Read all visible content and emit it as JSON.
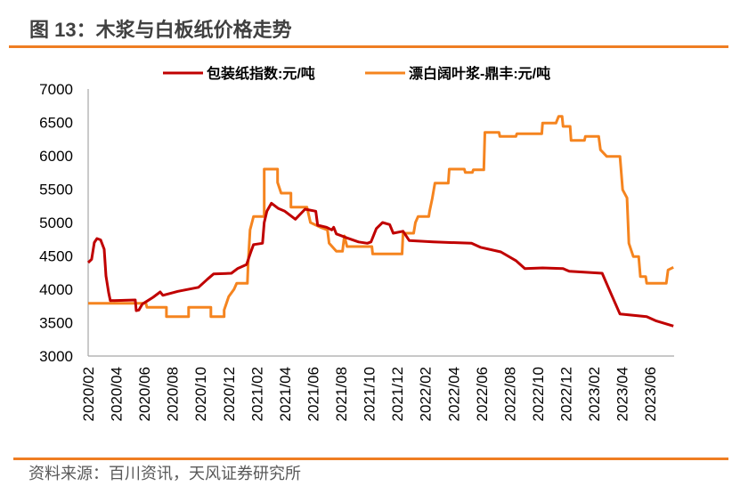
{
  "title": "图 13：木浆与白板纸价格走势",
  "source": "资料来源：百川资讯，天风证券研究所",
  "chart_data": {
    "type": "line",
    "title": "图 13：木浆与白板纸价格走势",
    "xlabel": "",
    "ylabel": "",
    "ylim": [
      3000,
      7000
    ],
    "yticks": [
      "3000",
      "3500",
      "4000",
      "4500",
      "5000",
      "5500",
      "6000",
      "6500",
      "7000"
    ],
    "x_unit": "months since 2020/02",
    "xlim": [
      0,
      41.7
    ],
    "xtick_labels": [
      "2020/02",
      "2020/04",
      "2020/06",
      "2020/08",
      "2020/10",
      "2020/12",
      "2021/02",
      "2021/04",
      "2021/06",
      "2021/08",
      "2021/10",
      "2021/12",
      "2022/02",
      "2022/04",
      "2022/06",
      "2022/08",
      "2022/10",
      "2022/12",
      "2023/02",
      "2023/04",
      "2023/06"
    ],
    "legend_position": "top",
    "grid": false,
    "series": [
      {
        "name": "包装纸指数:元/吨",
        "color": "#c00000",
        "points": [
          [
            0,
            4400
          ],
          [
            0.25,
            4450
          ],
          [
            0.44,
            4700
          ],
          [
            0.63,
            4760
          ],
          [
            0.89,
            4740
          ],
          [
            1.14,
            4600
          ],
          [
            1.27,
            4200
          ],
          [
            1.46,
            3950
          ],
          [
            1.58,
            3830
          ],
          [
            3.35,
            3840
          ],
          [
            3.42,
            3680
          ],
          [
            3.61,
            3690
          ],
          [
            3.86,
            3780
          ],
          [
            4.24,
            3830
          ],
          [
            4.62,
            3880
          ],
          [
            5.13,
            3960
          ],
          [
            5.32,
            3910
          ],
          [
            6.39,
            3970
          ],
          [
            7.85,
            4030
          ],
          [
            8.48,
            4150
          ],
          [
            8.92,
            4230
          ],
          [
            10.19,
            4240
          ],
          [
            10.63,
            4310
          ],
          [
            11.27,
            4370
          ],
          [
            11.58,
            4560
          ],
          [
            11.77,
            4670
          ],
          [
            12.41,
            4690
          ],
          [
            12.53,
            5000
          ],
          [
            12.72,
            5170
          ],
          [
            13.04,
            5290
          ],
          [
            13.54,
            5210
          ],
          [
            13.99,
            5170
          ],
          [
            14.75,
            5050
          ],
          [
            15.44,
            5200
          ],
          [
            16.2,
            5170
          ],
          [
            16.33,
            4960
          ],
          [
            16.96,
            4930
          ],
          [
            17.34,
            4890
          ],
          [
            17.47,
            4930
          ],
          [
            17.66,
            4830
          ],
          [
            18.42,
            4770
          ],
          [
            19.24,
            4710
          ],
          [
            19.87,
            4690
          ],
          [
            20.13,
            4710
          ],
          [
            20.51,
            4910
          ],
          [
            20.95,
            5000
          ],
          [
            21.46,
            4970
          ],
          [
            21.71,
            4840
          ],
          [
            22.41,
            4870
          ],
          [
            22.85,
            4730
          ],
          [
            24.56,
            4710
          ],
          [
            27.28,
            4690
          ],
          [
            27.91,
            4630
          ],
          [
            29.37,
            4560
          ],
          [
            30.44,
            4430
          ],
          [
            31.08,
            4310
          ],
          [
            32.34,
            4320
          ],
          [
            33.8,
            4310
          ],
          [
            34.24,
            4270
          ],
          [
            36.58,
            4240
          ],
          [
            37.22,
            3930
          ],
          [
            37.85,
            3630
          ],
          [
            39.75,
            3590
          ],
          [
            40.38,
            3530
          ],
          [
            41.65,
            3450
          ]
        ]
      },
      {
        "name": "漂白阔叶浆-鼎丰:元/吨",
        "color": "#f5841f",
        "points": [
          [
            0,
            3790
          ],
          [
            4.11,
            3790
          ],
          [
            4.18,
            3730
          ],
          [
            5.57,
            3730
          ],
          [
            5.57,
            3590
          ],
          [
            7.15,
            3590
          ],
          [
            7.15,
            3730
          ],
          [
            8.73,
            3730
          ],
          [
            8.73,
            3590
          ],
          [
            9.68,
            3590
          ],
          [
            9.68,
            3690
          ],
          [
            10,
            3890
          ],
          [
            10.38,
            4000
          ],
          [
            10.57,
            4090
          ],
          [
            11.33,
            4090
          ],
          [
            11.39,
            4400
          ],
          [
            11.52,
            4890
          ],
          [
            11.77,
            5090
          ],
          [
            12.53,
            5090
          ],
          [
            12.53,
            5800
          ],
          [
            13.48,
            5800
          ],
          [
            13.48,
            5600
          ],
          [
            13.73,
            5440
          ],
          [
            14.43,
            5440
          ],
          [
            14.43,
            5230
          ],
          [
            15.57,
            5230
          ],
          [
            15.82,
            5000
          ],
          [
            16.52,
            4930
          ],
          [
            17.03,
            4890
          ],
          [
            17.15,
            4690
          ],
          [
            17.66,
            4570
          ],
          [
            18.1,
            4570
          ],
          [
            18.23,
            4800
          ],
          [
            18.42,
            4640
          ],
          [
            20.19,
            4640
          ],
          [
            20.25,
            4530
          ],
          [
            22.34,
            4530
          ],
          [
            22.41,
            4840
          ],
          [
            23.16,
            4840
          ],
          [
            23.29,
            5000
          ],
          [
            23.48,
            5090
          ],
          [
            24.24,
            5090
          ],
          [
            24.3,
            5170
          ],
          [
            24.49,
            5360
          ],
          [
            24.68,
            5590
          ],
          [
            25.63,
            5590
          ],
          [
            25.7,
            5800
          ],
          [
            26.77,
            5800
          ],
          [
            26.84,
            5750
          ],
          [
            27.34,
            5750
          ],
          [
            27.41,
            5790
          ],
          [
            28.16,
            5790
          ],
          [
            28.23,
            6350
          ],
          [
            29.24,
            6350
          ],
          [
            29.3,
            6290
          ],
          [
            30.44,
            6290
          ],
          [
            30.51,
            6330
          ],
          [
            32.28,
            6330
          ],
          [
            32.34,
            6490
          ],
          [
            33.29,
            6490
          ],
          [
            33.48,
            6590
          ],
          [
            33.73,
            6590
          ],
          [
            33.8,
            6440
          ],
          [
            34.3,
            6440
          ],
          [
            34.37,
            6230
          ],
          [
            35.32,
            6230
          ],
          [
            35.38,
            6290
          ],
          [
            36.33,
            6290
          ],
          [
            36.46,
            6090
          ],
          [
            36.9,
            5990
          ],
          [
            37.85,
            5990
          ],
          [
            38.04,
            5490
          ],
          [
            38.35,
            5370
          ],
          [
            38.48,
            4690
          ],
          [
            38.8,
            4490
          ],
          [
            39.18,
            4490
          ],
          [
            39.3,
            4190
          ],
          [
            39.68,
            4190
          ],
          [
            39.75,
            4090
          ],
          [
            41.14,
            4090
          ],
          [
            41.27,
            4290
          ],
          [
            41.65,
            4330
          ]
        ]
      }
    ]
  }
}
